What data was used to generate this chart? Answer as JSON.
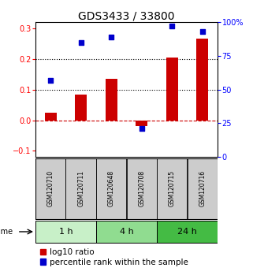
{
  "title": "GDS3433 / 33800",
  "samples": [
    "GSM120710",
    "GSM120711",
    "GSM120648",
    "GSM120708",
    "GSM120715",
    "GSM120716"
  ],
  "log10_ratio": [
    0.025,
    0.085,
    0.135,
    -0.02,
    0.205,
    0.268
  ],
  "percentile_rank_pct": [
    57,
    85,
    89,
    21,
    97,
    93
  ],
  "time_groups": [
    {
      "label": "1 h",
      "start": 0,
      "end": 2,
      "color": "#c8f0c8"
    },
    {
      "label": "4 h",
      "start": 2,
      "end": 4,
      "color": "#90dc90"
    },
    {
      "label": "24 h",
      "start": 4,
      "end": 6,
      "color": "#44bb44"
    }
  ],
  "left_ylim": [
    -0.12,
    0.32
  ],
  "left_yticks": [
    -0.1,
    0.0,
    0.1,
    0.2,
    0.3
  ],
  "right_ytick_pcts": [
    0,
    25,
    50,
    75,
    100
  ],
  "right_yticklabels": [
    "0",
    "25",
    "50",
    "75",
    "100%"
  ],
  "hlines": [
    0.1,
    0.2
  ],
  "bar_color": "#cc0000",
  "dot_color": "#0000cc",
  "zero_line_color": "#cc0000",
  "background_color": "#ffffff",
  "sample_box_color": "#cccccc",
  "title_fontsize": 10,
  "tick_fontsize": 7,
  "legend_fontsize": 7.5
}
